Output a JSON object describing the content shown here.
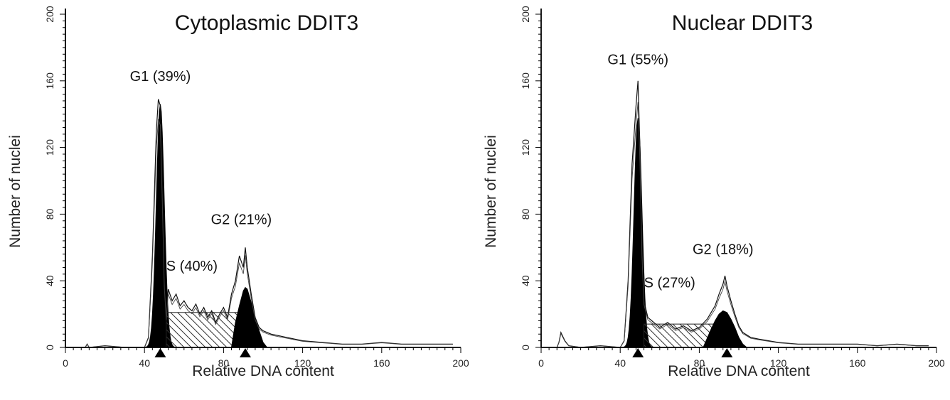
{
  "chart_data": [
    {
      "type": "area",
      "title": "Cytoplasmic DDIT3",
      "xlabel": "Relative DNA content",
      "ylabel": "Number of nuclei",
      "xlim": [
        0,
        200
      ],
      "ylim": [
        0,
        200
      ],
      "xticks": [
        0,
        40,
        80,
        120,
        160,
        200
      ],
      "yticks": [
        0,
        40,
        80,
        120,
        160,
        200
      ],
      "annotations": [
        {
          "text": "G1 (39%)",
          "x": 48,
          "y": 160
        },
        {
          "text": "S (40%)",
          "x": 64,
          "y": 46
        },
        {
          "text": "G2 (21%)",
          "x": 89,
          "y": 74
        }
      ],
      "markers": [
        48,
        91
      ],
      "series": [
        {
          "name": "",
          "points": [
            [
              0,
              0
            ],
            [
              10,
              0
            ],
            [
              11,
              2
            ],
            [
              12,
              0
            ],
            [
              20,
              1
            ],
            [
              30,
              0
            ],
            [
              40,
              0
            ],
            [
              42,
              6
            ],
            [
              44,
              55
            ],
            [
              46,
              130
            ],
            [
              47,
              149
            ],
            [
              48,
              145
            ],
            [
              49,
              95
            ],
            [
              50,
              40
            ],
            [
              51,
              18
            ],
            [
              52,
              35
            ],
            [
              54,
              28
            ],
            [
              56,
              32
            ],
            [
              58,
              25
            ],
            [
              60,
              28
            ],
            [
              62,
              24
            ],
            [
              64,
              22
            ],
            [
              66,
              26
            ],
            [
              68,
              20
            ],
            [
              70,
              24
            ],
            [
              72,
              18
            ],
            [
              74,
              22
            ],
            [
              76,
              15
            ],
            [
              78,
              20
            ],
            [
              80,
              24
            ],
            [
              82,
              18
            ],
            [
              84,
              32
            ],
            [
              86,
              40
            ],
            [
              88,
              55
            ],
            [
              90,
              48
            ],
            [
              91,
              60
            ],
            [
              92,
              48
            ],
            [
              94,
              32
            ],
            [
              96,
              18
            ],
            [
              98,
              12
            ],
            [
              100,
              10
            ],
            [
              104,
              8
            ],
            [
              108,
              7
            ],
            [
              112,
              6
            ],
            [
              120,
              4
            ],
            [
              130,
              3
            ],
            [
              140,
              2
            ],
            [
              150,
              2
            ],
            [
              160,
              3
            ],
            [
              170,
              2
            ],
            [
              180,
              2
            ],
            [
              190,
              2
            ],
            [
              196,
              2
            ]
          ]
        },
        {
          "name": "",
          "points": [
            [
              84,
              0
            ],
            [
              86,
              15
            ],
            [
              88,
              25
            ],
            [
              90,
              34
            ],
            [
              91,
              36
            ],
            [
              92,
              35
            ],
            [
              94,
              27
            ],
            [
              96,
              18
            ],
            [
              98,
              10
            ],
            [
              100,
              3
            ],
            [
              102,
              0
            ]
          ]
        }
      ]
    },
    {
      "type": "area",
      "title": "Nuclear DDIT3",
      "xlabel": "Relative DNA content",
      "ylabel": "Number of nuclei",
      "xlim": [
        0,
        200
      ],
      "ylim": [
        0,
        200
      ],
      "xticks": [
        0,
        40,
        80,
        120,
        160,
        200
      ],
      "yticks": [
        0,
        40,
        80,
        120,
        160,
        200
      ],
      "annotations": [
        {
          "text": "G1 (55%)",
          "x": 49,
          "y": 170
        },
        {
          "text": "S (27%)",
          "x": 65,
          "y": 36
        },
        {
          "text": "G2 (18%)",
          "x": 92,
          "y": 56
        }
      ],
      "markers": [
        49,
        94
      ],
      "series": [
        {
          "name": "",
          "points": [
            [
              8,
              0
            ],
            [
              9,
              3
            ],
            [
              10,
              9
            ],
            [
              12,
              4
            ],
            [
              14,
              1
            ],
            [
              20,
              0
            ],
            [
              30,
              1
            ],
            [
              40,
              0
            ],
            [
              42,
              4
            ],
            [
              44,
              40
            ],
            [
              46,
              110
            ],
            [
              48,
              145
            ],
            [
              49,
              160
            ],
            [
              50,
              120
            ],
            [
              51,
              60
            ],
            [
              52,
              28
            ],
            [
              54,
              18
            ],
            [
              56,
              16
            ],
            [
              58,
              14
            ],
            [
              60,
              12
            ],
            [
              64,
              15
            ],
            [
              68,
              11
            ],
            [
              72,
              13
            ],
            [
              76,
              10
            ],
            [
              80,
              12
            ],
            [
              84,
              17
            ],
            [
              88,
              25
            ],
            [
              90,
              32
            ],
            [
              92,
              38
            ],
            [
              93,
              43
            ],
            [
              94,
              37
            ],
            [
              96,
              28
            ],
            [
              98,
              20
            ],
            [
              100,
              13
            ],
            [
              102,
              9
            ],
            [
              106,
              6
            ],
            [
              110,
              5
            ],
            [
              120,
              3
            ],
            [
              130,
              2
            ],
            [
              140,
              2
            ],
            [
              150,
              2
            ],
            [
              160,
              2
            ],
            [
              170,
              1
            ],
            [
              180,
              2
            ],
            [
              190,
              1
            ],
            [
              196,
              1
            ]
          ]
        },
        {
          "name": "",
          "points": [
            [
              82,
              0
            ],
            [
              86,
              11
            ],
            [
              88,
              16
            ],
            [
              90,
              20
            ],
            [
              92,
              22
            ],
            [
              94,
              21
            ],
            [
              96,
              17
            ],
            [
              98,
              12
            ],
            [
              100,
              6
            ],
            [
              102,
              2
            ],
            [
              104,
              0
            ]
          ]
        }
      ]
    }
  ]
}
